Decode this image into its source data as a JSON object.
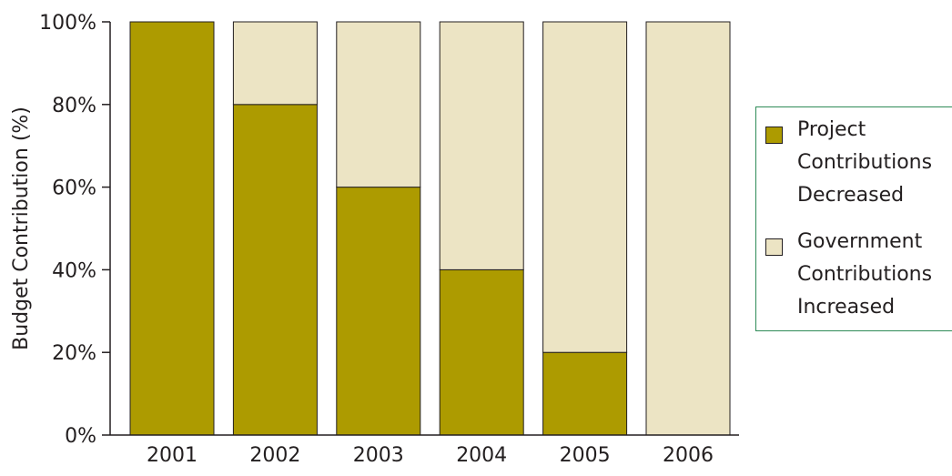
{
  "chart_data": {
    "type": "bar",
    "stacked": true,
    "categories": [
      "2001",
      "2002",
      "2003",
      "2004",
      "2005",
      "2006"
    ],
    "series": [
      {
        "name": "Project\nContributions\nDecreased",
        "values": [
          100,
          80,
          60,
          40,
          20,
          0
        ],
        "color": "#ad9b00"
      },
      {
        "name": "Government\nContributions\nIncreased",
        "values": [
          0,
          20,
          40,
          60,
          80,
          100
        ],
        "color": "#ece4c4"
      }
    ],
    "ylabel": "Budget Contribution (%)",
    "ylim": [
      0,
      100
    ],
    "yticks": [
      "0%",
      "20%",
      "40%",
      "60%",
      "80%",
      "100%"
    ],
    "grid": false,
    "legend_position": "right"
  }
}
